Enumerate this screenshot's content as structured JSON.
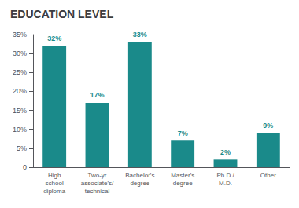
{
  "chart_data": {
    "type": "bar",
    "title": "EDUCATION LEVEL",
    "categories": [
      "High\nschool\ndiploma",
      "Two-yr\nassociate's/\ntechnical",
      "Bachelor's\ndegree",
      "Master's\ndegree",
      "Ph.D./\nM.D.",
      "Other"
    ],
    "values": [
      32,
      17,
      33,
      7,
      2,
      9
    ],
    "value_labels": [
      "32%",
      "17%",
      "33%",
      "7%",
      "2%",
      "9%"
    ],
    "data_labels": true,
    "color": "#1a8a8a",
    "ylim": [
      0,
      35
    ],
    "yticks": [
      0,
      {
        "value": 5,
        "label": "5%"
      },
      {
        "value": 10,
        "label": "10%"
      },
      {
        "value": 15,
        "label": "15%"
      },
      {
        "value": 20,
        "label": "20%"
      },
      {
        "value": 25,
        "label": "25%"
      },
      {
        "value": 30,
        "label": "30%"
      },
      {
        "value": 35,
        "label": "35%"
      }
    ],
    "grid": false
  }
}
